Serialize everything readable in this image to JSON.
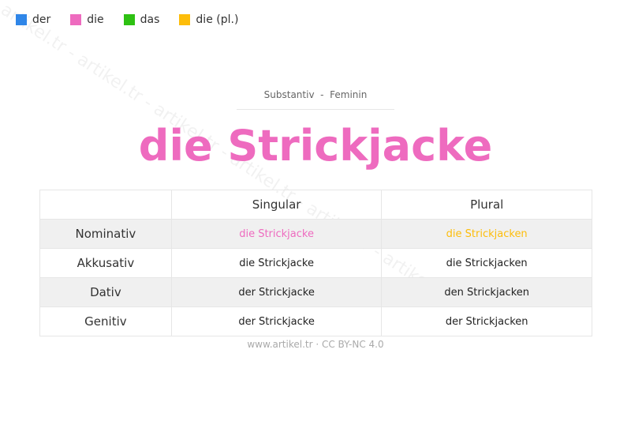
{
  "legend": [
    {
      "label": "der",
      "color": "#2f86e8"
    },
    {
      "label": "die",
      "color": "#ee6bbf"
    },
    {
      "label": "das",
      "color": "#2ec113"
    },
    {
      "label": "die (pl.)",
      "color": "#fdbd0a"
    }
  ],
  "subtitle": "Substantiv  -  Feminin",
  "title": "die Strickjacke",
  "title_color": "#ee6bbf",
  "watermark": "artikel.tr - artikel.tr - artikel.tr - artikel.tr - artikel.tr - artikel.tr",
  "table": {
    "headers": [
      "",
      "Singular",
      "Plural"
    ],
    "rows": [
      {
        "case": "Nominativ",
        "singular": "die Strickjacke",
        "plural": "die Strickjacken",
        "singular_color": "#ee6bbf",
        "plural_color": "#fdbd0a"
      },
      {
        "case": "Akkusativ",
        "singular": "die Strickjacke",
        "plural": "die Strickjacken"
      },
      {
        "case": "Dativ",
        "singular": "der Strickjacke",
        "plural": "den Strickjacken"
      },
      {
        "case": "Genitiv",
        "singular": "der Strickjacke",
        "plural": "der Strickjacken"
      }
    ]
  },
  "footer": "www.artikel.tr · CC BY-NC 4.0"
}
